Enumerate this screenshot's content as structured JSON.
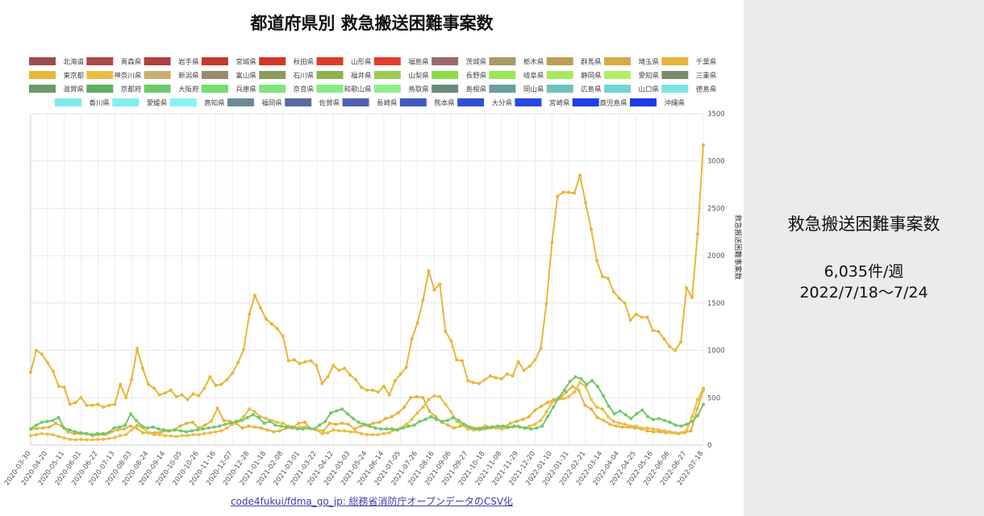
{
  "side_panel": {
    "title": "救急搬送困難事案数",
    "value": "6,035件/週",
    "period": "2022/7/18〜7/24"
  },
  "source": "code4fukui/fdma_go_jp: 総務省消防庁オープンデータのCSV化",
  "chart_data": {
    "type": "line",
    "title": "都道府県別 救急搬送困難事案数",
    "ylabel": "救急搬送困難事案数",
    "xlabel": "",
    "ylim": [
      0,
      3500
    ],
    "y_ticks": [
      0,
      500,
      1000,
      1500,
      2000,
      2500,
      3000,
      3500
    ],
    "grid": true,
    "legend_position": "top",
    "x_start": "2020-03-30",
    "x_end": "2022-07-18",
    "x_tick_labels": [
      "2020-03-30",
      "2020-04-20",
      "2020-05-11",
      "2020-06-01",
      "2020-06-22",
      "2020-07-13",
      "2020-08-03",
      "2020-08-24",
      "2020-09-14",
      "2020-10-05",
      "2020-10-26",
      "2020-11-16",
      "2020-12-07",
      "2020-12-28",
      "2021-01-18",
      "2021-02-08",
      "2021-03-01",
      "2021-03-22",
      "2021-04-12",
      "2021-05-03",
      "2021-05-24",
      "2021-06-14",
      "2021-07-05",
      "2021-07-26",
      "2021-08-16",
      "2021-09-06",
      "2021-09-27",
      "2021-10-18",
      "2021-11-08",
      "2021-11-29",
      "2021-12-20",
      "2022-01-10",
      "2022-01-31",
      "2022-02-21",
      "2022-03-14",
      "2022-04-04",
      "2022-04-25",
      "2022-05-16",
      "2022-06-06",
      "2022-06-27",
      "2022-07-18"
    ],
    "series": [
      {
        "name": "北海道",
        "color": "#9c4e4e"
      },
      {
        "name": "青森県",
        "color": "#a84a45"
      },
      {
        "name": "岩手県",
        "color": "#b0403c"
      },
      {
        "name": "宮城県",
        "color": "#c03a2e"
      },
      {
        "name": "秋田県",
        "color": "#d33526"
      },
      {
        "name": "山形県",
        "color": "#e03a2a"
      },
      {
        "name": "福島県",
        "color": "#e33d2d"
      },
      {
        "name": "茨城県",
        "color": "#9a6a6a"
      },
      {
        "name": "栃木県",
        "color": "#a89a62"
      },
      {
        "name": "群馬県",
        "color": "#bc9e52"
      },
      {
        "name": "埼玉県",
        "color": "#d4ab45"
      },
      {
        "name": "千葉県",
        "color": "#e6b43c",
        "values": [
          170,
          175,
          180,
          190,
          230,
          200,
          140,
          120,
          120,
          120,
          100,
          110,
          110,
          140,
          160,
          170,
          200,
          180,
          130,
          130,
          130,
          140,
          150,
          160,
          200,
          230,
          240,
          180,
          210,
          250,
          390,
          260,
          250,
          230,
          180,
          200,
          190,
          180,
          160,
          140,
          150,
          180,
          180,
          230,
          240,
          170,
          160,
          150,
          230,
          220,
          230,
          220,
          170,
          200,
          210,
          230,
          240,
          280,
          300,
          340,
          400,
          500,
          510,
          500,
          360,
          300,
          240,
          210,
          180,
          200,
          200,
          180,
          180,
          200,
          190,
          190,
          190,
          230,
          250,
          270,
          300,
          370,
          410,
          450,
          480,
          500,
          560,
          620,
          580,
          420,
          380,
          290,
          260,
          220,
          200,
          190,
          190,
          180,
          170,
          150,
          140,
          140,
          130,
          130,
          120,
          130,
          150,
          380,
          580
        ]
      },
      {
        "name": "東京都",
        "color": "#e8b738",
        "values": [
          770,
          1000,
          960,
          870,
          780,
          620,
          610,
          430,
          450,
          500,
          420,
          420,
          430,
          400,
          420,
          430,
          640,
          500,
          690,
          1020,
          810,
          640,
          600,
          530,
          550,
          580,
          510,
          530,
          480,
          540,
          520,
          600,
          720,
          630,
          640,
          690,
          760,
          870,
          1010,
          1380,
          1580,
          1450,
          1330,
          1280,
          1230,
          1150,
          890,
          900,
          860,
          880,
          890,
          840,
          650,
          720,
          840,
          790,
          810,
          740,
          690,
          610,
          580,
          580,
          560,
          620,
          530,
          680,
          750,
          820,
          1120,
          1290,
          1530,
          1840,
          1640,
          1700,
          1200,
          1100,
          900,
          890,
          680,
          660,
          650,
          690,
          730,
          710,
          700,
          750,
          730,
          880,
          790,
          830,
          900,
          1020,
          1490,
          2140,
          2630,
          2670,
          2670,
          2660,
          2850,
          2560,
          2280,
          1950,
          1780,
          1760,
          1620,
          1550,
          1500,
          1320,
          1380,
          1350,
          1350,
          1210,
          1200,
          1120,
          1040,
          1000,
          1090,
          1660,
          1560,
          2230,
          3170
        ]
      },
      {
        "name": "神奈川県",
        "color": "#ebbd45",
        "values": [
          100,
          110,
          120,
          115,
          110,
          90,
          75,
          60,
          55,
          60,
          55,
          55,
          60,
          60,
          70,
          80,
          100,
          110,
          160,
          210,
          180,
          130,
          110,
          110,
          100,
          95,
          90,
          100,
          100,
          110,
          110,
          120,
          130,
          140,
          150,
          180,
          220,
          250,
          300,
          380,
          350,
          300,
          280,
          260,
          240,
          230,
          200,
          190,
          190,
          190,
          170,
          160,
          120,
          130,
          160,
          150,
          150,
          140,
          140,
          120,
          110,
          110,
          110,
          120,
          130,
          160,
          180,
          220,
          270,
          340,
          400,
          480,
          520,
          510,
          430,
          350,
          250,
          210,
          170,
          160,
          160,
          170,
          180,
          180,
          170,
          180,
          190,
          200,
          180,
          200,
          220,
          260,
          350,
          450,
          480,
          490,
          510,
          560,
          660,
          620,
          480,
          400,
          380,
          300,
          250,
          230,
          220,
          200,
          200,
          180,
          180,
          170,
          160,
          150,
          140,
          130,
          130,
          150,
          300,
          480,
          600
        ]
      },
      {
        "name": "新潟県",
        "color": "#c8b070"
      },
      {
        "name": "富山県",
        "color": "#9a8a6a"
      },
      {
        "name": "石川県",
        "color": "#8c9a5a"
      },
      {
        "name": "福井県",
        "color": "#8eb04e"
      },
      {
        "name": "山梨県",
        "color": "#9ccc55"
      },
      {
        "name": "長野県",
        "color": "#8edb4a"
      },
      {
        "name": "岐阜県",
        "color": "#9ae655"
      },
      {
        "name": "静岡県",
        "color": "#a5ec5d"
      },
      {
        "name": "愛知県",
        "color": "#aef066"
      },
      {
        "name": "三重県",
        "color": "#7a8a6a"
      },
      {
        "name": "滋賀県",
        "color": "#6a9a6a"
      },
      {
        "name": "京都府",
        "color": "#5fae5f"
      },
      {
        "name": "大阪府",
        "color": "#6fc96a",
        "values": [
          170,
          210,
          240,
          250,
          260,
          290,
          180,
          160,
          140,
          130,
          120,
          110,
          120,
          120,
          130,
          180,
          190,
          210,
          330,
          260,
          200,
          180,
          190,
          170,
          160,
          150,
          160,
          150,
          140,
          150,
          160,
          170,
          180,
          190,
          200,
          220,
          230,
          250,
          260,
          290,
          320,
          290,
          230,
          250,
          210,
          200,
          190,
          190,
          170,
          170,
          180,
          170,
          210,
          250,
          340,
          360,
          380,
          330,
          280,
          240,
          220,
          200,
          180,
          170,
          170,
          170,
          160,
          180,
          200,
          210,
          250,
          270,
          300,
          270,
          250,
          260,
          290,
          260,
          220,
          190,
          170,
          170,
          180,
          190,
          200,
          200,
          190,
          200,
          190,
          180,
          170,
          180,
          200,
          300,
          400,
          500,
          580,
          670,
          720,
          700,
          640,
          680,
          620,
          520,
          410,
          330,
          360,
          320,
          280,
          330,
          370,
          300,
          270,
          280,
          260,
          240,
          210,
          200,
          220,
          250,
          310,
          430
        ]
      },
      {
        "name": "兵庫県",
        "color": "#76dc70"
      },
      {
        "name": "奈良県",
        "color": "#7ee67a"
      },
      {
        "name": "和歌山県",
        "color": "#86ec82"
      },
      {
        "name": "鳥取県",
        "color": "#8ef08a"
      },
      {
        "name": "島根県",
        "color": "#6a8a7a"
      },
      {
        "name": "岡山県",
        "color": "#6aa0a0"
      },
      {
        "name": "広島県",
        "color": "#70c0c0"
      },
      {
        "name": "山口県",
        "color": "#74d4d4"
      },
      {
        "name": "徳島県",
        "color": "#7ae4e4"
      },
      {
        "name": "香川県",
        "color": "#7eeaea"
      },
      {
        "name": "愛媛県",
        "color": "#82f0f0"
      },
      {
        "name": "高知県",
        "color": "#86f4f4"
      },
      {
        "name": "福岡県",
        "color": "#6a8a9a"
      },
      {
        "name": "佐賀県",
        "color": "#5a6aa0"
      },
      {
        "name": "長崎県",
        "color": "#5060b0"
      },
      {
        "name": "熊本県",
        "color": "#4058c0"
      },
      {
        "name": "大分県",
        "color": "#3050d0"
      },
      {
        "name": "宮崎県",
        "color": "#2848e0"
      },
      {
        "name": "鹿児島県",
        "color": "#2040e6"
      },
      {
        "name": "沖縄県",
        "color": "#1c3cea"
      }
    ]
  }
}
